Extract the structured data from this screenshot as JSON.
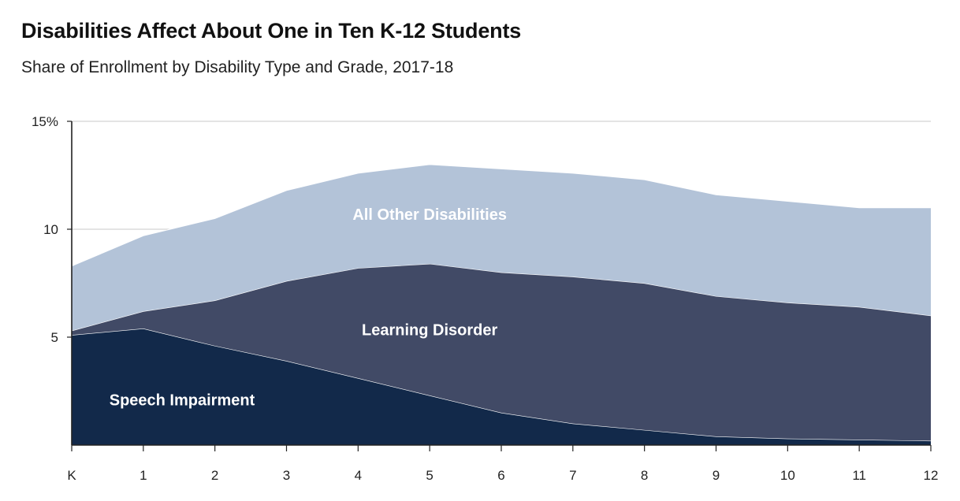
{
  "chart_data": {
    "type": "area",
    "stacked": true,
    "title": "Disabilities Affect About One in Ten K-12 Students",
    "subtitle": "Share of Enrollment by Disability Type and Grade, 2017-18",
    "categories": [
      "K",
      "1",
      "2",
      "3",
      "4",
      "5",
      "6",
      "7",
      "8",
      "9",
      "10",
      "11",
      "12"
    ],
    "ylim": [
      0,
      15
    ],
    "yticks": [
      {
        "value": 5,
        "label": "5"
      },
      {
        "value": 10,
        "label": "10"
      },
      {
        "value": 15,
        "label": "15%"
      }
    ],
    "grid": true,
    "series": [
      {
        "name": "Speech Impairment",
        "color": "#12294a",
        "values": [
          5.1,
          5.4,
          4.6,
          3.9,
          3.1,
          2.3,
          1.5,
          1.0,
          0.7,
          0.4,
          0.3,
          0.25,
          0.2
        ]
      },
      {
        "name": "Learning Disorder",
        "color": "#414a66",
        "values": [
          0.2,
          0.8,
          2.1,
          3.7,
          5.1,
          6.1,
          6.5,
          6.8,
          6.8,
          6.5,
          6.3,
          6.15,
          5.8
        ]
      },
      {
        "name": "All Other Disabilities",
        "color": "#b3c3d8",
        "values": [
          3.0,
          3.5,
          3.8,
          4.2,
          4.4,
          4.6,
          4.8,
          4.8,
          4.8,
          4.7,
          4.7,
          4.6,
          5.0
        ]
      }
    ]
  }
}
